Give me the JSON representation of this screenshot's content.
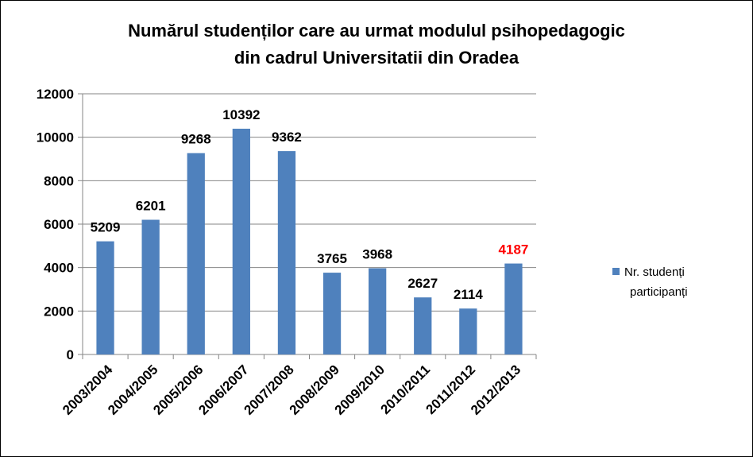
{
  "chart_data": {
    "type": "bar",
    "title_lines": [
      "Numărul studenților care au urmat modulul psihopedagogic",
      "din cadrul Universitatii din Oradea"
    ],
    "categories": [
      "2003/2004",
      "2004/2005",
      "2005/2006",
      "2006/2007",
      "2007/2008",
      "2008/2009",
      "2009/2010",
      "2010/2011",
      "2011/2012",
      "2012/2013"
    ],
    "series": [
      {
        "name": "Nr. studenți participanți",
        "legend_lines": [
          "Nr. studenți",
          "participanți"
        ],
        "values": [
          5209,
          6201,
          9268,
          10392,
          9362,
          3765,
          3968,
          2627,
          2114,
          4187
        ],
        "color": "#4f81bd"
      }
    ],
    "ylim": [
      0,
      12000
    ],
    "yticks": [
      0,
      2000,
      4000,
      6000,
      8000,
      10000,
      12000
    ],
    "grid": true,
    "legend_position": "right",
    "data_label_color": "#000000",
    "highlight_label": {
      "index": 9,
      "color": "#ff0000"
    }
  }
}
